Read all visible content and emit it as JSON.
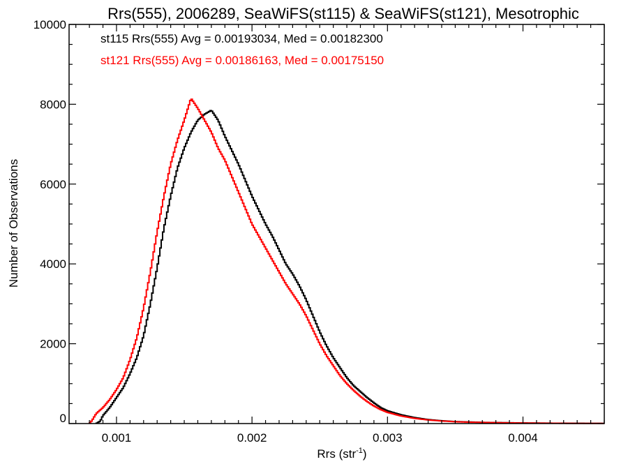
{
  "chart_data": {
    "type": "line",
    "title": "Rrs(555), 2006289, SeaWiFS(st115) & SeaWiFS(st121), Mesotrophic",
    "xlabel_base": "Rrs (str",
    "xlabel_sup": "-1",
    "xlabel_end": ")",
    "ylabel": "Number of Observations",
    "xlim": [
      0.00065,
      0.0046
    ],
    "ylim": [
      0,
      10000
    ],
    "x_ticks": [
      0.001,
      0.002,
      0.003,
      0.004
    ],
    "x_tick_labels": [
      "0.001",
      "0.002",
      "0.003",
      "0.004"
    ],
    "y_ticks": [
      0,
      2000,
      4000,
      6000,
      8000,
      10000
    ],
    "y_tick_labels": [
      "0",
      "2000",
      "4000",
      "6000",
      "8000",
      "10000"
    ],
    "legend": [
      {
        "text": "st115 Rrs(555) Avg = 0.00193034, Med = 0.00182300",
        "color": "#000000"
      },
      {
        "text": "st121 Rrs(555) Avg = 0.00186163, Med = 0.00175150",
        "color": "#ff0000"
      }
    ],
    "legend_position": "top-left",
    "series": [
      {
        "color": "#000000",
        "points": [
          [
            0.00085,
            0
          ],
          [
            0.00088,
            60
          ],
          [
            0.0009,
            200
          ],
          [
            0.00095,
            400
          ],
          [
            0.001,
            650
          ],
          [
            0.00105,
            900
          ],
          [
            0.0011,
            1250
          ],
          [
            0.00115,
            1650
          ],
          [
            0.0012,
            2200
          ],
          [
            0.00125,
            3000
          ],
          [
            0.0013,
            3900
          ],
          [
            0.00135,
            4900
          ],
          [
            0.0014,
            5700
          ],
          [
            0.00145,
            6400
          ],
          [
            0.0015,
            6900
          ],
          [
            0.00155,
            7300
          ],
          [
            0.0016,
            7600
          ],
          [
            0.00165,
            7750
          ],
          [
            0.0017,
            7850
          ],
          [
            0.00175,
            7600
          ],
          [
            0.0018,
            7200
          ],
          [
            0.00185,
            6850
          ],
          [
            0.0019,
            6500
          ],
          [
            0.00195,
            6100
          ],
          [
            0.002,
            5700
          ],
          [
            0.00205,
            5350
          ],
          [
            0.0021,
            5000
          ],
          [
            0.00215,
            4700
          ],
          [
            0.0022,
            4350
          ],
          [
            0.00225,
            4000
          ],
          [
            0.0023,
            3750
          ],
          [
            0.00235,
            3450
          ],
          [
            0.0024,
            3100
          ],
          [
            0.00245,
            2700
          ],
          [
            0.0025,
            2300
          ],
          [
            0.00255,
            1950
          ],
          [
            0.0026,
            1650
          ],
          [
            0.00265,
            1400
          ],
          [
            0.0027,
            1150
          ],
          [
            0.00275,
            950
          ],
          [
            0.0028,
            800
          ],
          [
            0.00285,
            650
          ],
          [
            0.0029,
            520
          ],
          [
            0.00295,
            400
          ],
          [
            0.003,
            320
          ],
          [
            0.0031,
            220
          ],
          [
            0.0032,
            150
          ],
          [
            0.0033,
            100
          ],
          [
            0.0034,
            70
          ],
          [
            0.0035,
            50
          ],
          [
            0.0036,
            40
          ],
          [
            0.0037,
            30
          ],
          [
            0.0038,
            25
          ],
          [
            0.0039,
            20
          ],
          [
            0.004,
            15
          ],
          [
            0.0042,
            10
          ],
          [
            0.0044,
            6
          ],
          [
            0.0046,
            4
          ]
        ]
      },
      {
        "color": "#ff0000",
        "points": [
          [
            0.0008,
            0
          ],
          [
            0.00082,
            80
          ],
          [
            0.00085,
            250
          ],
          [
            0.0009,
            400
          ],
          [
            0.00095,
            600
          ],
          [
            0.001,
            850
          ],
          [
            0.00105,
            1150
          ],
          [
            0.0011,
            1600
          ],
          [
            0.00115,
            2150
          ],
          [
            0.0012,
            2900
          ],
          [
            0.00125,
            3800
          ],
          [
            0.0013,
            4800
          ],
          [
            0.00135,
            5700
          ],
          [
            0.0014,
            6500
          ],
          [
            0.00145,
            7100
          ],
          [
            0.0015,
            7600
          ],
          [
            0.00155,
            8150
          ],
          [
            0.0016,
            7900
          ],
          [
            0.00165,
            7600
          ],
          [
            0.0017,
            7300
          ],
          [
            0.00175,
            6900
          ],
          [
            0.0018,
            6600
          ],
          [
            0.00185,
            6200
          ],
          [
            0.0019,
            5800
          ],
          [
            0.00195,
            5400
          ],
          [
            0.002,
            5000
          ],
          [
            0.00205,
            4700
          ],
          [
            0.0021,
            4400
          ],
          [
            0.00215,
            4100
          ],
          [
            0.0022,
            3800
          ],
          [
            0.00225,
            3500
          ],
          [
            0.0023,
            3250
          ],
          [
            0.00235,
            3000
          ],
          [
            0.0024,
            2700
          ],
          [
            0.00245,
            2350
          ],
          [
            0.0025,
            2000
          ],
          [
            0.00255,
            1700
          ],
          [
            0.0026,
            1450
          ],
          [
            0.00265,
            1200
          ],
          [
            0.0027,
            1000
          ],
          [
            0.00275,
            830
          ],
          [
            0.0028,
            680
          ],
          [
            0.00285,
            550
          ],
          [
            0.0029,
            440
          ],
          [
            0.00295,
            350
          ],
          [
            0.003,
            280
          ],
          [
            0.0031,
            190
          ],
          [
            0.0032,
            130
          ],
          [
            0.0033,
            90
          ],
          [
            0.0034,
            65
          ],
          [
            0.0035,
            45
          ],
          [
            0.0036,
            35
          ],
          [
            0.0037,
            28
          ],
          [
            0.0038,
            22
          ],
          [
            0.0039,
            18
          ],
          [
            0.004,
            14
          ],
          [
            0.0042,
            9
          ],
          [
            0.0044,
            5
          ],
          [
            0.0046,
            3
          ]
        ]
      }
    ]
  }
}
